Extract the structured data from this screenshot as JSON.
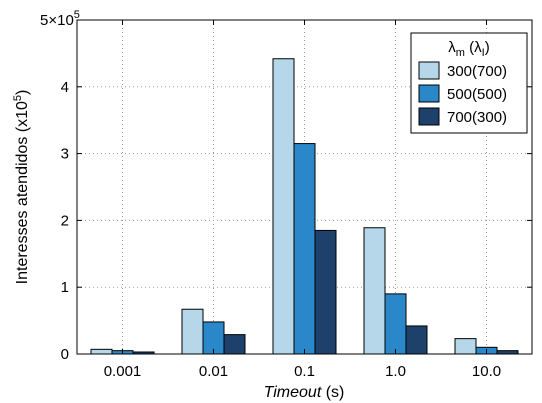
{
  "chart_data": {
    "type": "bar",
    "categories": [
      "0.001",
      "0.01",
      "0.1",
      "1.0",
      "10.0"
    ],
    "series": [
      {
        "name": "300(700)",
        "color": "#b6d7ea",
        "values": [
          0.07,
          0.67,
          4.42,
          1.89,
          0.23
        ]
      },
      {
        "name": "500(500)",
        "color": "#2a87c9",
        "values": [
          0.05,
          0.48,
          3.15,
          0.9,
          0.1
        ]
      },
      {
        "name": "700(300)",
        "color": "#1d416b",
        "values": [
          0.03,
          0.29,
          1.85,
          0.42,
          0.05
        ]
      }
    ],
    "xlabel_italic": "Timeout",
    "xlabel_rest": " (s)",
    "ylabel": "Interesses atendidos (x10",
    "ylabel_exp": "5",
    "ylabel_close": ")",
    "ylim": [
      0,
      5
    ],
    "yticks": [
      {
        "value": 0,
        "label": "0"
      },
      {
        "value": 1,
        "label": "1"
      },
      {
        "value": 2,
        "label": "2"
      },
      {
        "value": 3,
        "label": "3"
      },
      {
        "value": 4,
        "label": "4"
      }
    ],
    "ytop_label_base": "5×10",
    "ytop_label_exp": "5",
    "legend_title_main": "λ",
    "legend_title_sub1": "m",
    "legend_title_mid": " (λ",
    "legend_title_sub2": "I",
    "legend_title_close": ")",
    "grid": true,
    "legend_position": "top-right"
  }
}
